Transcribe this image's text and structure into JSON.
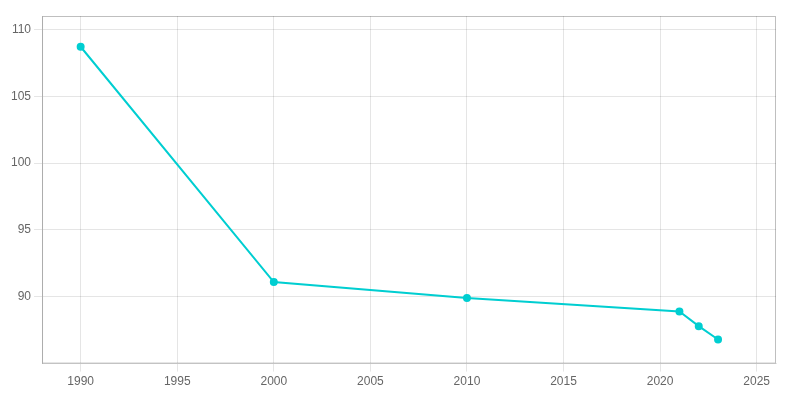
{
  "chart_data": {
    "type": "line",
    "x": [
      1990,
      2000,
      2010,
      2021,
      2022,
      2023
    ],
    "values": [
      108.7,
      91.1,
      89.9,
      88.9,
      87.8,
      86.8
    ],
    "color": "#00CED1",
    "marker": "circle",
    "xlim": [
      1988,
      2026
    ],
    "ylim": [
      85,
      111
    ],
    "xticks": [
      1990,
      1995,
      2000,
      2005,
      2010,
      2015,
      2020,
      2025
    ],
    "yticks": [
      90,
      95,
      100,
      105,
      110
    ],
    "grid": true
  }
}
